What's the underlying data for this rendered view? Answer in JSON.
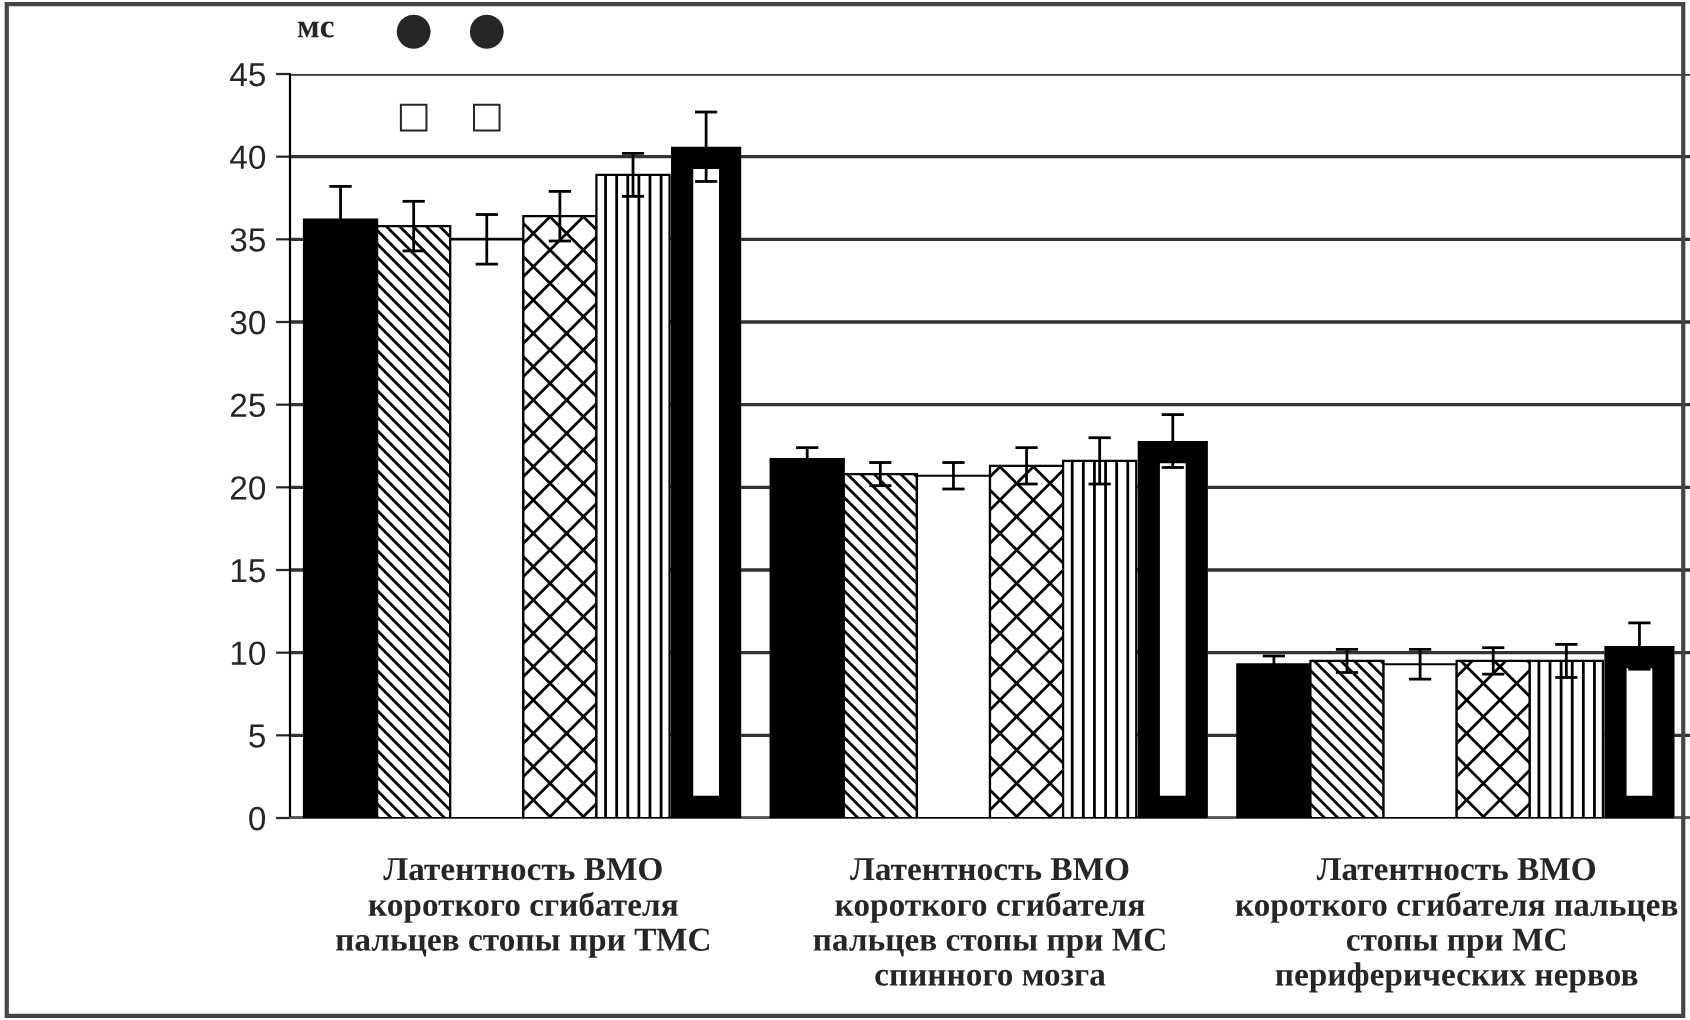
{
  "chart_data": {
    "type": "bar",
    "ylabel": "мс",
    "categories": [
      "Латентность ВМО\nкороткого сгибателя\nпальцев стопы при ТМС",
      "Латентность ВМО\nкороткого сгибателя\nпальцев стопы при МС\nспинного мозга",
      "Латентность ВМО\nкороткого сгибателя пальцев\nстопы при МС\nпериферических нервов"
    ],
    "series": [
      {
        "color": "#000000",
        "values": [
          36.2,
          21.7,
          9.3
        ],
        "errors": [
          2.0,
          0.7,
          0.5
        ]
      },
      {
        "color": "#000000",
        "values": [
          35.8,
          20.8,
          9.5
        ],
        "errors": [
          1.5,
          0.7,
          0.7
        ]
      },
      {
        "color": "#ffffff",
        "values": [
          35.0,
          20.7,
          9.3
        ],
        "errors": [
          1.5,
          0.8,
          0.9
        ]
      },
      {
        "color": "#000000",
        "values": [
          36.4,
          21.3,
          9.5
        ],
        "errors": [
          1.5,
          1.1,
          0.8
        ]
      },
      {
        "color": "#000000",
        "values": [
          38.9,
          21.6,
          9.5
        ],
        "errors": [
          1.3,
          1.4,
          1.0
        ]
      },
      {
        "color": "#000000",
        "values": [
          40.6,
          22.8,
          10.4
        ],
        "errors": [
          2.1,
          1.6,
          1.4
        ]
      }
    ],
    "ylim": [
      0,
      45
    ],
    "yticks": [
      0,
      5,
      10,
      15,
      20,
      25,
      30,
      35,
      40,
      45
    ],
    "grid": "y",
    "annotations": [
      "●",
      "●",
      "□",
      "□"
    ]
  }
}
